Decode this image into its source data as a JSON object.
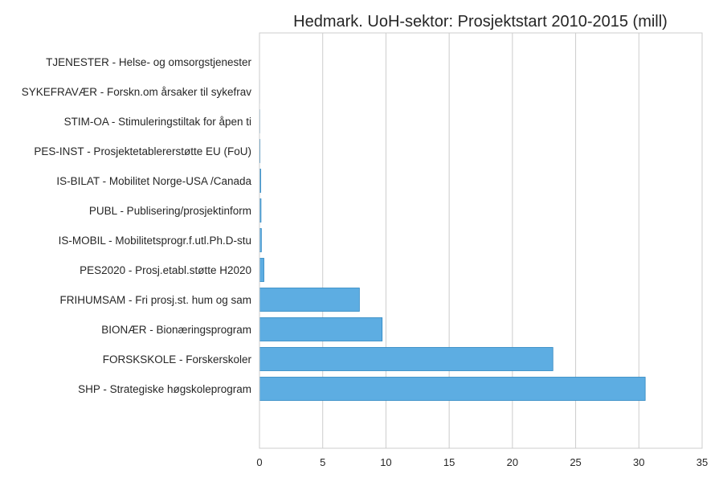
{
  "chart_data": {
    "type": "bar",
    "orientation": "horizontal",
    "title": "Hedmark. UoH-sektor: Prosjektstart 2010-2015 (mill)",
    "xlabel": "",
    "ylabel": "",
    "xlim": [
      0,
      35
    ],
    "x_ticks": [
      0,
      5,
      10,
      15,
      20,
      25,
      30,
      35
    ],
    "grid": true,
    "categories": [
      "SHP - Strategiske høgskoleprogram",
      "FORSKSKOLE - Forskerskoler",
      "BIONÆR - Bionæringsprogram",
      "FRIHUMSAM - Fri prosj.st. hum og sam",
      "PES2020 - Prosj.etabl.støtte H2020",
      "IS-MOBIL - Mobilitetsprogr.f.utl.Ph.D-stu",
      "PUBL - Publisering/prosjektinform",
      "IS-BILAT - Mobilitet Norge-USA /Canada",
      "PES-INST - Prosjektetablererstøtte EU (FoU)",
      "STIM-OA - Stimuleringstiltak for åpen ti",
      "SYKEFRAVÆR - Forskn.om årsaker til sykefrav",
      "TJENESTER - Helse- og omsorgstjenester"
    ],
    "values": [
      30.5,
      23.2,
      9.7,
      7.9,
      0.35,
      0.15,
      0.12,
      0.1,
      0.04,
      0.02,
      0.01,
      0.005
    ],
    "bar_color": "#5dade2",
    "bar_edge_color": "#2e86c1"
  }
}
